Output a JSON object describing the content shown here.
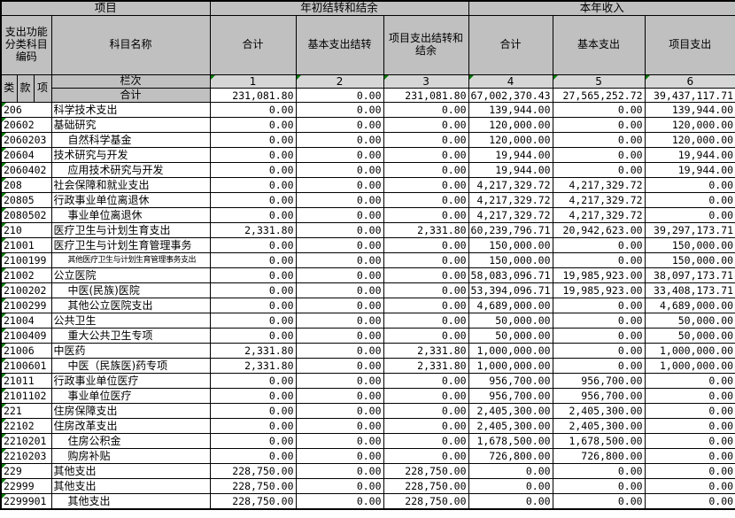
{
  "header": {
    "group_project": "项目",
    "group_carryover": "年初结转和结余",
    "group_income": "本年收入",
    "code_header": "支出功能分类科目编码",
    "subject_name_header": "科目名称",
    "class_label": "类",
    "section_label": "款",
    "item_label": "项",
    "carryover_cols": [
      "合计",
      "基本支出结转",
      "项目支出结转和结余"
    ],
    "income_cols": [
      "合计",
      "基本支出",
      "项目支出"
    ],
    "lanci_label": "栏次",
    "col_numbers": [
      "1",
      "2",
      "3",
      "4",
      "5",
      "6"
    ],
    "total_label": "合计"
  },
  "totals": [
    "231,081.80",
    "0.00",
    "231,081.80",
    "67,002,370.43",
    "27,565,252.72",
    "39,437,117.71"
  ],
  "rows": [
    {
      "code": "206",
      "name": "科学技术支出",
      "indent": false,
      "small": false,
      "values": [
        "0.00",
        "0.00",
        "0.00",
        "139,944.00",
        "0.00",
        "139,944.00"
      ]
    },
    {
      "code": "20602",
      "name": "基础研究",
      "indent": false,
      "small": false,
      "values": [
        "0.00",
        "0.00",
        "0.00",
        "120,000.00",
        "0.00",
        "120,000.00"
      ]
    },
    {
      "code": "2060203",
      "name": "自然科学基金",
      "indent": true,
      "small": false,
      "values": [
        "0.00",
        "0.00",
        "0.00",
        "120,000.00",
        "0.00",
        "120,000.00"
      ]
    },
    {
      "code": "20604",
      "name": "技术研究与开发",
      "indent": false,
      "small": false,
      "values": [
        "0.00",
        "0.00",
        "0.00",
        "19,944.00",
        "0.00",
        "19,944.00"
      ]
    },
    {
      "code": "2060402",
      "name": "应用技术研究与开发",
      "indent": true,
      "small": false,
      "values": [
        "0.00",
        "0.00",
        "0.00",
        "19,944.00",
        "0.00",
        "19,944.00"
      ]
    },
    {
      "code": "208",
      "name": "社会保障和就业支出",
      "indent": false,
      "small": false,
      "values": [
        "0.00",
        "0.00",
        "0.00",
        "4,217,329.72",
        "4,217,329.72",
        "0.00"
      ]
    },
    {
      "code": "20805",
      "name": "行政事业单位离退休",
      "indent": false,
      "small": false,
      "values": [
        "0.00",
        "0.00",
        "0.00",
        "4,217,329.72",
        "4,217,329.72",
        "0.00"
      ]
    },
    {
      "code": "2080502",
      "name": "事业单位离退休",
      "indent": true,
      "small": false,
      "values": [
        "0.00",
        "0.00",
        "0.00",
        "4,217,329.72",
        "4,217,329.72",
        "0.00"
      ]
    },
    {
      "code": "210",
      "name": "医疗卫生与计划生育支出",
      "indent": false,
      "small": false,
      "values": [
        "2,331.80",
        "0.00",
        "2,331.80",
        "60,239,796.71",
        "20,942,623.00",
        "39,297,173.71"
      ]
    },
    {
      "code": "21001",
      "name": "医疗卫生与计划生育管理事务",
      "indent": false,
      "small": false,
      "values": [
        "0.00",
        "0.00",
        "0.00",
        "150,000.00",
        "0.00",
        "150,000.00"
      ]
    },
    {
      "code": "2100199",
      "name": "其他医疗卫生与计划生育管理事务支出",
      "indent": true,
      "small": true,
      "values": [
        "0.00",
        "0.00",
        "0.00",
        "150,000.00",
        "0.00",
        "150,000.00"
      ]
    },
    {
      "code": "21002",
      "name": "公立医院",
      "indent": false,
      "small": false,
      "values": [
        "0.00",
        "0.00",
        "0.00",
        "58,083,096.71",
        "19,985,923.00",
        "38,097,173.71"
      ]
    },
    {
      "code": "2100202",
      "name": "中医(民族)医院",
      "indent": true,
      "small": false,
      "values": [
        "0.00",
        "0.00",
        "0.00",
        "53,394,096.71",
        "19,985,923.00",
        "33,408,173.71"
      ]
    },
    {
      "code": "2100299",
      "name": "其他公立医院支出",
      "indent": true,
      "small": false,
      "values": [
        "0.00",
        "0.00",
        "0.00",
        "4,689,000.00",
        "0.00",
        "4,689,000.00"
      ]
    },
    {
      "code": "21004",
      "name": "公共卫生",
      "indent": false,
      "small": false,
      "values": [
        "0.00",
        "0.00",
        "0.00",
        "50,000.00",
        "0.00",
        "50,000.00"
      ]
    },
    {
      "code": "2100409",
      "name": "重大公共卫生专项",
      "indent": true,
      "small": false,
      "values": [
        "0.00",
        "0.00",
        "0.00",
        "50,000.00",
        "0.00",
        "50,000.00"
      ]
    },
    {
      "code": "21006",
      "name": "中医药",
      "indent": false,
      "small": false,
      "values": [
        "2,331.80",
        "0.00",
        "2,331.80",
        "1,000,000.00",
        "0.00",
        "1,000,000.00"
      ]
    },
    {
      "code": "2100601",
      "name": "中医（民族医)药专项",
      "indent": true,
      "small": false,
      "values": [
        "2,331.80",
        "0.00",
        "2,331.80",
        "1,000,000.00",
        "0.00",
        "1,000,000.00"
      ]
    },
    {
      "code": "21011",
      "name": "行政事业单位医疗",
      "indent": false,
      "small": false,
      "values": [
        "0.00",
        "0.00",
        "0.00",
        "956,700.00",
        "956,700.00",
        "0.00"
      ]
    },
    {
      "code": "2101102",
      "name": "事业单位医疗",
      "indent": true,
      "small": false,
      "values": [
        "0.00",
        "0.00",
        "0.00",
        "956,700.00",
        "956,700.00",
        "0.00"
      ]
    },
    {
      "code": "221",
      "name": "住房保障支出",
      "indent": false,
      "small": false,
      "values": [
        "0.00",
        "0.00",
        "0.00",
        "2,405,300.00",
        "2,405,300.00",
        "0.00"
      ]
    },
    {
      "code": "22102",
      "name": "住房改革支出",
      "indent": false,
      "small": false,
      "values": [
        "0.00",
        "0.00",
        "0.00",
        "2,405,300.00",
        "2,405,300.00",
        "0.00"
      ]
    },
    {
      "code": "2210201",
      "name": "住房公积金",
      "indent": true,
      "small": false,
      "values": [
        "0.00",
        "0.00",
        "0.00",
        "1,678,500.00",
        "1,678,500.00",
        "0.00"
      ]
    },
    {
      "code": "2210203",
      "name": "购房补贴",
      "indent": true,
      "small": false,
      "values": [
        "0.00",
        "0.00",
        "0.00",
        "726,800.00",
        "726,800.00",
        "0.00"
      ]
    },
    {
      "code": "229",
      "name": "其他支出",
      "indent": false,
      "small": false,
      "values": [
        "228,750.00",
        "0.00",
        "228,750.00",
        "0.00",
        "0.00",
        "0.00"
      ]
    },
    {
      "code": "22999",
      "name": "其他支出",
      "indent": false,
      "small": false,
      "values": [
        "228,750.00",
        "0.00",
        "228,750.00",
        "0.00",
        "0.00",
        "0.00"
      ]
    },
    {
      "code": "2299901",
      "name": "其他支出",
      "indent": true,
      "small": false,
      "values": [
        "228,750.00",
        "0.00",
        "228,750.00",
        "0.00",
        "0.00",
        "0.00"
      ]
    }
  ],
  "colors": {
    "header_bg": "#c0c0c0",
    "subheader_bg": "#d6d6d6",
    "error_triangle_green": "#007a00",
    "grid_border": "#000000"
  }
}
